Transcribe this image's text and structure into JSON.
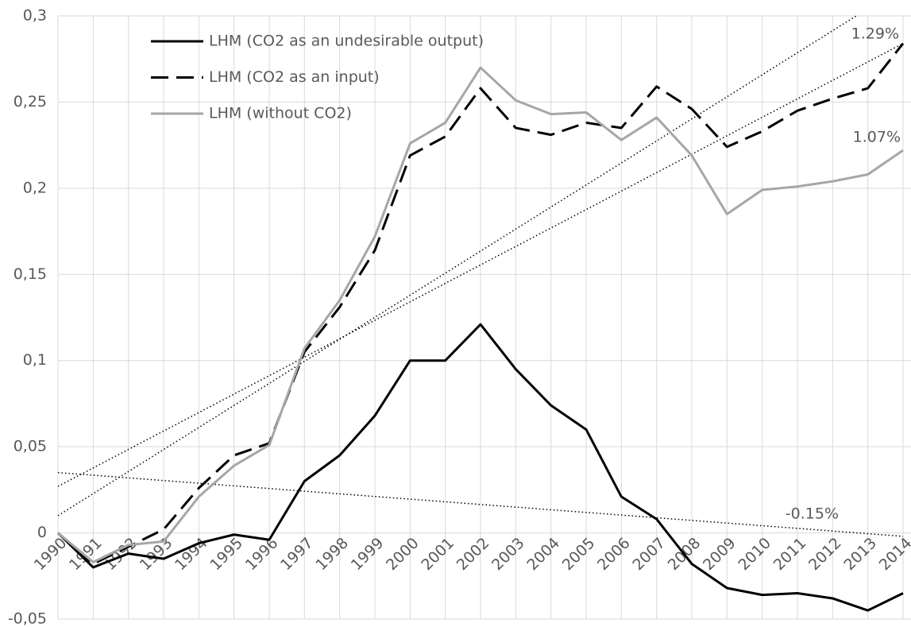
{
  "chart_data": {
    "type": "line",
    "categories": [
      "1990",
      "1991",
      "1992",
      "1993",
      "1994",
      "1995",
      "1996",
      "1997",
      "1998",
      "1999",
      "2000",
      "2001",
      "2002",
      "2003",
      "2004",
      "2005",
      "2006",
      "2007",
      "2008",
      "2009",
      "2010",
      "2011",
      "2012",
      "2013",
      "2014"
    ],
    "series": [
      {
        "name": "LHM (CO2 as an undesirable output)",
        "color": "#000000",
        "dash": "solid",
        "values": [
          0,
          -0.02,
          -0.012,
          -0.015,
          -0.006,
          -0.001,
          -0.004,
          0.03,
          0.045,
          0.068,
          0.1,
          0.1,
          0.121,
          0.095,
          0.074,
          0.06,
          0.021,
          0.008,
          -0.018,
          -0.032,
          -0.036,
          -0.035,
          -0.038,
          -0.045,
          -0.035
        ]
      },
      {
        "name": "LHM (CO2 as an input)",
        "color": "#000000",
        "dash": "dashed",
        "values": [
          0,
          -0.018,
          -0.008,
          0.002,
          0.026,
          0.045,
          0.052,
          0.105,
          0.131,
          0.164,
          0.219,
          0.23,
          0.258,
          0.235,
          0.231,
          0.238,
          0.235,
          0.259,
          0.246,
          0.224,
          0.233,
          0.245,
          0.252,
          0.258,
          0.284
        ]
      },
      {
        "name": "LHM (without CO2)",
        "color": "#a6a6a6",
        "dash": "solid",
        "values": [
          0,
          -0.017,
          -0.007,
          -0.005,
          0.021,
          0.039,
          0.051,
          0.107,
          0.135,
          0.172,
          0.226,
          0.238,
          0.27,
          0.251,
          0.243,
          0.244,
          0.228,
          0.241,
          0.219,
          0.185,
          0.199,
          0.201,
          0.204,
          0.208,
          0.222
        ]
      }
    ],
    "trendlines": [
      {
        "label": "1.29%",
        "values": [
          0.01,
          0.317
        ]
      },
      {
        "label": "1.07%",
        "values": [
          0.027,
          0.284
        ]
      },
      {
        "label": "-0.15%",
        "values": [
          0.035,
          -0.002
        ]
      }
    ],
    "ylim": [
      -0.05,
      0.3
    ],
    "yticks": [
      {
        "value": -0.05,
        "label": "-0,05"
      },
      0,
      {
        "value": 0.05,
        "label": "0,05"
      },
      {
        "value": 0.1,
        "label": "0,1"
      },
      {
        "value": 0.15,
        "label": "0,15"
      },
      {
        "value": 0.2,
        "label": "0,2"
      },
      {
        "value": 0.25,
        "label": "0,25"
      },
      {
        "value": 0.3,
        "label": "0,3"
      }
    ],
    "grid": true
  }
}
